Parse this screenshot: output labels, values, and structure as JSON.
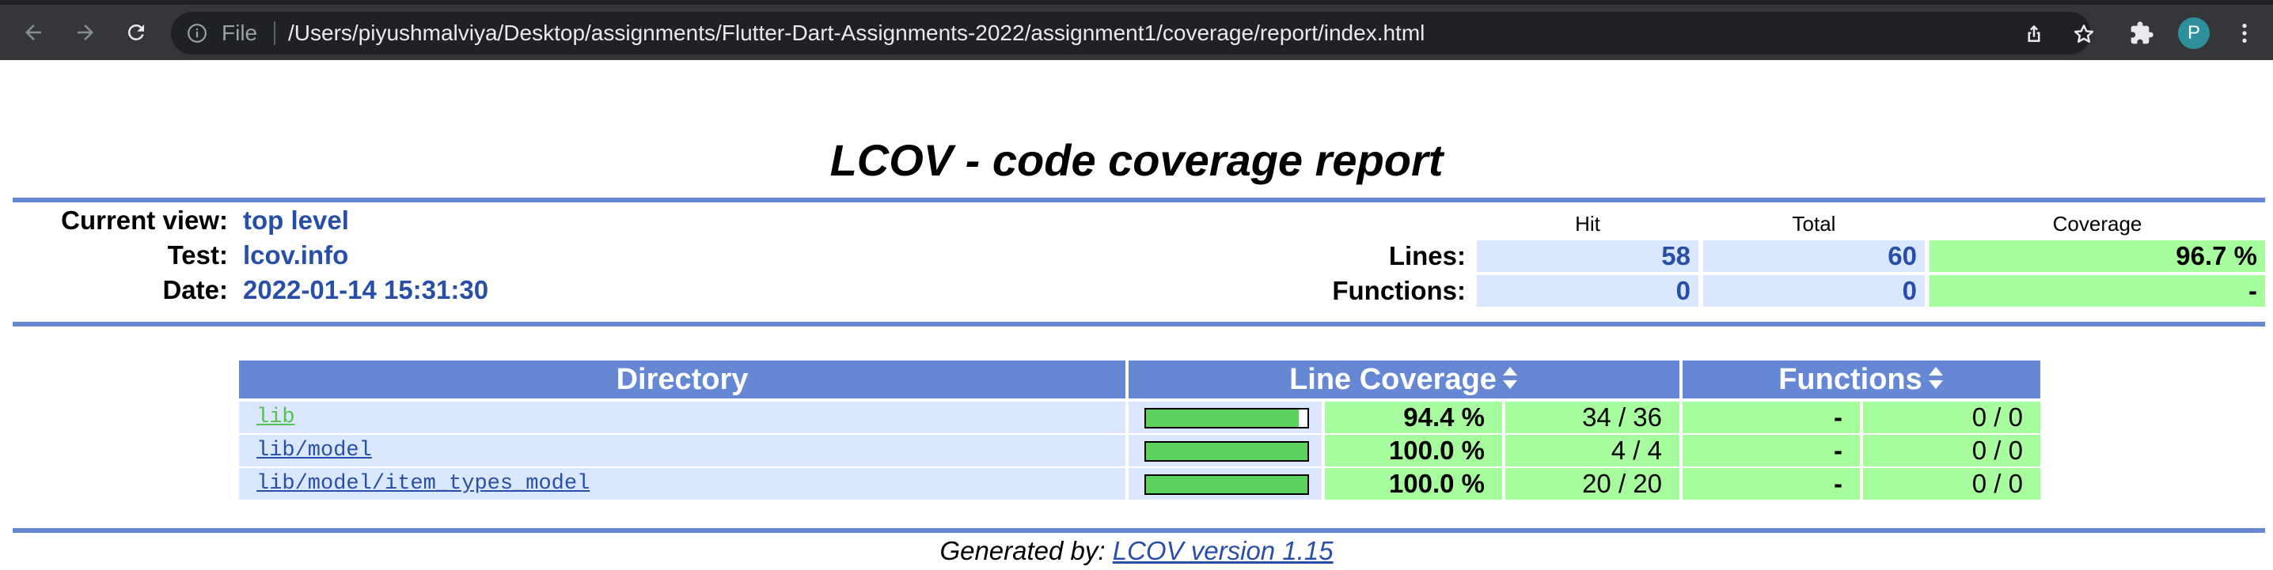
{
  "browser": {
    "file_label": "File",
    "url": "/Users/piyushmalviya/Desktop/assignments/Flutter-Dart-Assignments-2022/assignment1/coverage/report/index.html",
    "avatar_initial": "P",
    "icons": [
      "back-icon",
      "forward-icon",
      "reload-icon",
      "info-icon",
      "share-icon",
      "star-icon",
      "extensions-icon",
      "menu-icon"
    ]
  },
  "report": {
    "title": "LCOV - code coverage report",
    "header": {
      "current_view_label": "Current view:",
      "current_view_value": "top level",
      "test_label": "Test:",
      "test_value": "lcov.info",
      "date_label": "Date:",
      "date_value": "2022-01-14 15:31:30"
    },
    "stats": {
      "columns": {
        "hit": "Hit",
        "total": "Total",
        "coverage": "Coverage"
      },
      "lines": {
        "label": "Lines:",
        "hit": "58",
        "total": "60",
        "coverage": "96.7 %"
      },
      "functions": {
        "label": "Functions:",
        "hit": "0",
        "total": "0",
        "coverage": "-"
      }
    },
    "table": {
      "headers": {
        "directory": "Directory",
        "line_coverage": "Line Coverage",
        "functions": "Functions"
      },
      "rows": [
        {
          "dir": "lib",
          "visited": true,
          "bar_fraction": 0.944,
          "pct": "94.4 %",
          "lines": "34 / 36",
          "fn_pct": "-",
          "fn_count": "0 / 0"
        },
        {
          "dir": "lib/model",
          "visited": false,
          "bar_fraction": 1.0,
          "pct": "100.0 %",
          "lines": "4 / 4",
          "fn_pct": "-",
          "fn_count": "0 / 0"
        },
        {
          "dir": "lib/model/item_types_model",
          "visited": false,
          "bar_fraction": 1.0,
          "pct": "100.0 %",
          "lines": "20 / 20",
          "fn_pct": "-",
          "fn_count": "0 / 0"
        }
      ]
    },
    "footer": {
      "generated_by": "Generated by:",
      "tool_link": "LCOV version 1.15"
    }
  },
  "colors": {
    "header_blue": "#6688d4",
    "value_blue": "#284fa8",
    "cell_blue": "#dae7fe",
    "coverage_green": "#a7fc9d",
    "bar_green": "#5bd25b"
  }
}
